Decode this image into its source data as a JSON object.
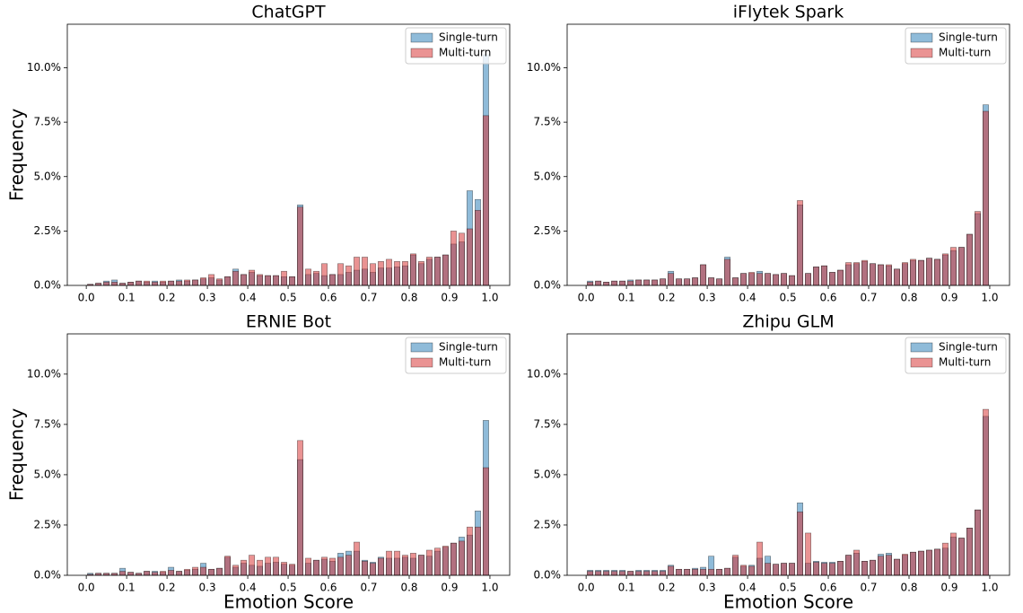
{
  "chart_data": [
    {
      "type": "histogram",
      "title": "ChatGPT",
      "ylabel": "Frequency",
      "bins": [
        0,
        0.02,
        0.04,
        0.06,
        0.08,
        0.1,
        0.12,
        0.14,
        0.16,
        0.18,
        0.2,
        0.22,
        0.24,
        0.26,
        0.28,
        0.3,
        0.32,
        0.34,
        0.36,
        0.38,
        0.4,
        0.42,
        0.44,
        0.46,
        0.48,
        0.5,
        0.52,
        0.54,
        0.56,
        0.58,
        0.6,
        0.62,
        0.64,
        0.66,
        0.68,
        0.7,
        0.72,
        0.74,
        0.76,
        0.78,
        0.8,
        0.82,
        0.84,
        0.86,
        0.88,
        0.9,
        0.92,
        0.94,
        0.96,
        0.98,
        1
      ],
      "series": [
        {
          "name": "Single-turn",
          "color": "#1f77b4",
          "values": [
            0.05,
            0.1,
            0.2,
            0.25,
            0.1,
            0.15,
            0.2,
            0.15,
            0.2,
            0.15,
            0.2,
            0.25,
            0.2,
            0.25,
            0.3,
            0.35,
            0.25,
            0.4,
            0.75,
            0.5,
            0.6,
            0.45,
            0.45,
            0.45,
            0.4,
            0.4,
            3.7,
            0.5,
            0.55,
            0.45,
            0.5,
            0.5,
            0.6,
            0.7,
            0.75,
            0.6,
            0.8,
            0.8,
            0.85,
            0.9,
            1.4,
            1.0,
            1.2,
            1.3,
            1.4,
            1.9,
            2.0,
            4.35,
            3.95,
            10.6
          ]
        },
        {
          "name": "Multi-turn",
          "color": "#d62728",
          "values": [
            0.05,
            0.1,
            0.15,
            0.15,
            0.1,
            0.15,
            0.2,
            0.2,
            0.15,
            0.2,
            0.2,
            0.2,
            0.25,
            0.25,
            0.35,
            0.5,
            0.3,
            0.4,
            0.65,
            0.5,
            0.7,
            0.5,
            0.45,
            0.45,
            0.65,
            0.4,
            3.6,
            0.75,
            0.65,
            1.0,
            0.5,
            1.0,
            0.9,
            1.3,
            1.3,
            1.0,
            1.1,
            1.2,
            1.1,
            1.1,
            1.45,
            1.1,
            1.3,
            1.3,
            1.4,
            2.5,
            2.4,
            2.6,
            3.45,
            7.8
          ]
        }
      ],
      "xlim": [
        -0.047,
        1.049
      ],
      "ylim": [
        0,
        12
      ],
      "xticks": [
        {
          "value": 0,
          "label": "0.0"
        },
        0.1,
        0.2,
        0.3,
        0.4,
        0.5,
        0.6,
        0.7,
        0.8,
        0.9,
        {
          "value": 1,
          "label": "1.0"
        }
      ],
      "yticks": [
        {
          "value": 0,
          "label": "0.0%"
        },
        {
          "value": 2.5,
          "label": "2.5%"
        },
        {
          "value": 5,
          "label": "5.0%"
        },
        {
          "value": 7.5,
          "label": "7.5%"
        },
        {
          "value": 10,
          "label": "10.0%"
        }
      ],
      "legend": "upper right"
    },
    {
      "type": "histogram",
      "title": "iFlytek Spark",
      "bins": [
        0,
        0.02,
        0.04,
        0.06,
        0.08,
        0.1,
        0.12,
        0.14,
        0.16,
        0.18,
        0.2,
        0.22,
        0.24,
        0.26,
        0.28,
        0.3,
        0.32,
        0.34,
        0.36,
        0.38,
        0.4,
        0.42,
        0.44,
        0.46,
        0.48,
        0.5,
        0.52,
        0.54,
        0.56,
        0.58,
        0.6,
        0.62,
        0.64,
        0.66,
        0.68,
        0.7,
        0.72,
        0.74,
        0.76,
        0.78,
        0.8,
        0.82,
        0.84,
        0.86,
        0.88,
        0.9,
        0.92,
        0.94,
        0.96,
        0.98,
        1
      ],
      "series": [
        {
          "name": "Single-turn",
          "color": "#1f77b4",
          "values": [
            0.2,
            0.2,
            0.15,
            0.2,
            0.2,
            0.25,
            0.25,
            0.25,
            0.25,
            0.3,
            0.65,
            0.3,
            0.3,
            0.35,
            0.95,
            0.35,
            0.3,
            1.3,
            0.35,
            0.55,
            0.55,
            0.65,
            0.55,
            0.5,
            0.55,
            0.45,
            3.7,
            0.55,
            0.85,
            0.9,
            0.6,
            0.7,
            0.95,
            1.0,
            1.1,
            1.0,
            0.95,
            0.9,
            0.75,
            1.0,
            1.15,
            1.15,
            1.25,
            1.2,
            1.4,
            1.6,
            1.75,
            2.35,
            3.3,
            8.3
          ]
        },
        {
          "name": "Multi-turn",
          "color": "#d62728",
          "values": [
            0.15,
            0.2,
            0.15,
            0.2,
            0.2,
            0.2,
            0.25,
            0.25,
            0.25,
            0.3,
            0.55,
            0.3,
            0.3,
            0.35,
            0.95,
            0.35,
            0.3,
            1.2,
            0.35,
            0.55,
            0.6,
            0.55,
            0.55,
            0.5,
            0.55,
            0.45,
            3.9,
            0.55,
            0.85,
            0.9,
            0.6,
            0.7,
            1.05,
            1.05,
            1.15,
            1.0,
            0.95,
            0.95,
            0.75,
            1.05,
            1.2,
            1.15,
            1.25,
            1.2,
            1.45,
            1.75,
            1.75,
            2.35,
            3.4,
            8.0
          ]
        }
      ],
      "xlim": [
        -0.047,
        1.049
      ],
      "ylim": [
        0,
        12
      ],
      "xticks": [
        {
          "value": 0,
          "label": "0.0"
        },
        0.1,
        0.2,
        0.3,
        0.4,
        0.5,
        0.6,
        0.7,
        0.8,
        0.9,
        {
          "value": 1,
          "label": "1.0"
        }
      ],
      "yticks": [
        {
          "value": 0,
          "label": "0.0%"
        },
        {
          "value": 2.5,
          "label": "2.5%"
        },
        {
          "value": 5,
          "label": "5.0%"
        },
        {
          "value": 7.5,
          "label": "7.5%"
        },
        {
          "value": 10,
          "label": "10.0%"
        }
      ],
      "legend": "upper right"
    },
    {
      "type": "histogram",
      "title": "ERNIE Bot",
      "ylabel": "Frequency",
      "xlabel": "Emotion Score",
      "bins": [
        0,
        0.02,
        0.04,
        0.06,
        0.08,
        0.1,
        0.12,
        0.14,
        0.16,
        0.18,
        0.2,
        0.22,
        0.24,
        0.26,
        0.28,
        0.3,
        0.32,
        0.34,
        0.36,
        0.38,
        0.4,
        0.42,
        0.44,
        0.46,
        0.48,
        0.5,
        0.52,
        0.54,
        0.56,
        0.58,
        0.6,
        0.62,
        0.64,
        0.66,
        0.68,
        0.7,
        0.72,
        0.74,
        0.76,
        0.78,
        0.8,
        0.82,
        0.84,
        0.86,
        0.88,
        0.9,
        0.92,
        0.94,
        0.96,
        0.98,
        1
      ],
      "series": [
        {
          "name": "Single-turn",
          "color": "#1f77b4",
          "values": [
            0.1,
            0.1,
            0.1,
            0.1,
            0.35,
            0.15,
            0.1,
            0.2,
            0.2,
            0.15,
            0.4,
            0.2,
            0.25,
            0.3,
            0.6,
            0.3,
            0.35,
            0.9,
            0.4,
            0.6,
            0.5,
            0.45,
            0.6,
            0.65,
            0.55,
            0.5,
            5.75,
            0.6,
            0.75,
            0.8,
            0.7,
            1.1,
            1.2,
            1.2,
            0.75,
            0.65,
            0.9,
            0.85,
            0.85,
            0.9,
            0.85,
            1.0,
            0.95,
            1.2,
            1.4,
            1.6,
            1.9,
            2.0,
            3.2,
            7.7
          ]
        },
        {
          "name": "Multi-turn",
          "color": "#d62728",
          "values": [
            0.05,
            0.1,
            0.1,
            0.1,
            0.2,
            0.15,
            0.1,
            0.2,
            0.15,
            0.2,
            0.25,
            0.2,
            0.3,
            0.4,
            0.4,
            0.3,
            0.35,
            0.95,
            0.5,
            0.75,
            1.0,
            0.75,
            0.9,
            0.9,
            0.65,
            0.55,
            6.7,
            0.85,
            0.75,
            0.9,
            0.85,
            0.9,
            1.0,
            1.65,
            0.7,
            0.6,
            0.85,
            1.2,
            1.2,
            1.0,
            1.1,
            1.0,
            1.25,
            1.35,
            1.45,
            1.6,
            1.7,
            2.4,
            2.4,
            5.35
          ]
        }
      ],
      "xlim": [
        -0.047,
        1.049
      ],
      "ylim": [
        0,
        12
      ],
      "xticks": [
        {
          "value": 0,
          "label": "0.0"
        },
        0.1,
        0.2,
        0.3,
        0.4,
        0.5,
        0.6,
        0.7,
        0.8,
        0.9,
        {
          "value": 1,
          "label": "1.0"
        }
      ],
      "yticks": [
        {
          "value": 0,
          "label": "0.0%"
        },
        {
          "value": 2.5,
          "label": "2.5%"
        },
        {
          "value": 5,
          "label": "5.0%"
        },
        {
          "value": 7.5,
          "label": "7.5%"
        },
        {
          "value": 10,
          "label": "10.0%"
        }
      ],
      "legend": "upper right"
    },
    {
      "type": "histogram",
      "title": "Zhipu GLM",
      "xlabel": "Emotion Score",
      "bins": [
        0,
        0.02,
        0.04,
        0.06,
        0.08,
        0.1,
        0.12,
        0.14,
        0.16,
        0.18,
        0.2,
        0.22,
        0.24,
        0.26,
        0.28,
        0.3,
        0.32,
        0.34,
        0.36,
        0.38,
        0.4,
        0.42,
        0.44,
        0.46,
        0.48,
        0.5,
        0.52,
        0.54,
        0.56,
        0.58,
        0.6,
        0.62,
        0.64,
        0.66,
        0.68,
        0.7,
        0.72,
        0.74,
        0.76,
        0.78,
        0.8,
        0.82,
        0.84,
        0.86,
        0.88,
        0.9,
        0.92,
        0.94,
        0.96,
        0.98,
        1
      ],
      "series": [
        {
          "name": "Single-turn",
          "color": "#1f77b4",
          "values": [
            0.25,
            0.25,
            0.25,
            0.25,
            0.25,
            0.2,
            0.25,
            0.25,
            0.25,
            0.25,
            0.5,
            0.3,
            0.3,
            0.35,
            0.4,
            0.95,
            0.3,
            0.35,
            0.9,
            0.45,
            0.5,
            0.85,
            0.95,
            0.55,
            0.6,
            0.6,
            3.6,
            0.6,
            0.7,
            0.65,
            0.65,
            0.7,
            1.0,
            1.1,
            0.7,
            0.75,
            1.05,
            1.1,
            0.8,
            1.0,
            1.15,
            1.2,
            1.25,
            1.3,
            1.35,
            1.9,
            1.85,
            2.35,
            3.25,
            7.9
          ]
        },
        {
          "name": "Multi-turn",
          "color": "#d62728",
          "values": [
            0.2,
            0.2,
            0.2,
            0.2,
            0.2,
            0.2,
            0.2,
            0.2,
            0.2,
            0.2,
            0.45,
            0.3,
            0.3,
            0.3,
            0.3,
            0.3,
            0.3,
            0.35,
            1.0,
            0.5,
            0.45,
            1.65,
            0.6,
            0.55,
            0.6,
            0.6,
            3.15,
            2.1,
            0.65,
            0.6,
            0.6,
            0.7,
            1.0,
            1.25,
            0.7,
            0.75,
            0.95,
            1.0,
            0.8,
            1.05,
            1.15,
            1.2,
            1.25,
            1.3,
            1.6,
            2.1,
            1.85,
            2.35,
            3.25,
            8.25
          ]
        }
      ],
      "xlim": [
        -0.047,
        1.049
      ],
      "ylim": [
        0,
        12
      ],
      "xticks": [
        {
          "value": 0,
          "label": "0.0"
        },
        0.1,
        0.2,
        0.3,
        0.4,
        0.5,
        0.6,
        0.7,
        0.8,
        0.9,
        {
          "value": 1,
          "label": "1.0"
        }
      ],
      "yticks": [
        {
          "value": 0,
          "label": "0.0%"
        },
        {
          "value": 2.5,
          "label": "2.5%"
        },
        {
          "value": 5,
          "label": "5.0%"
        },
        {
          "value": 7.5,
          "label": "7.5%"
        },
        {
          "value": 10,
          "label": "10.0%"
        }
      ],
      "legend": "upper right"
    }
  ]
}
